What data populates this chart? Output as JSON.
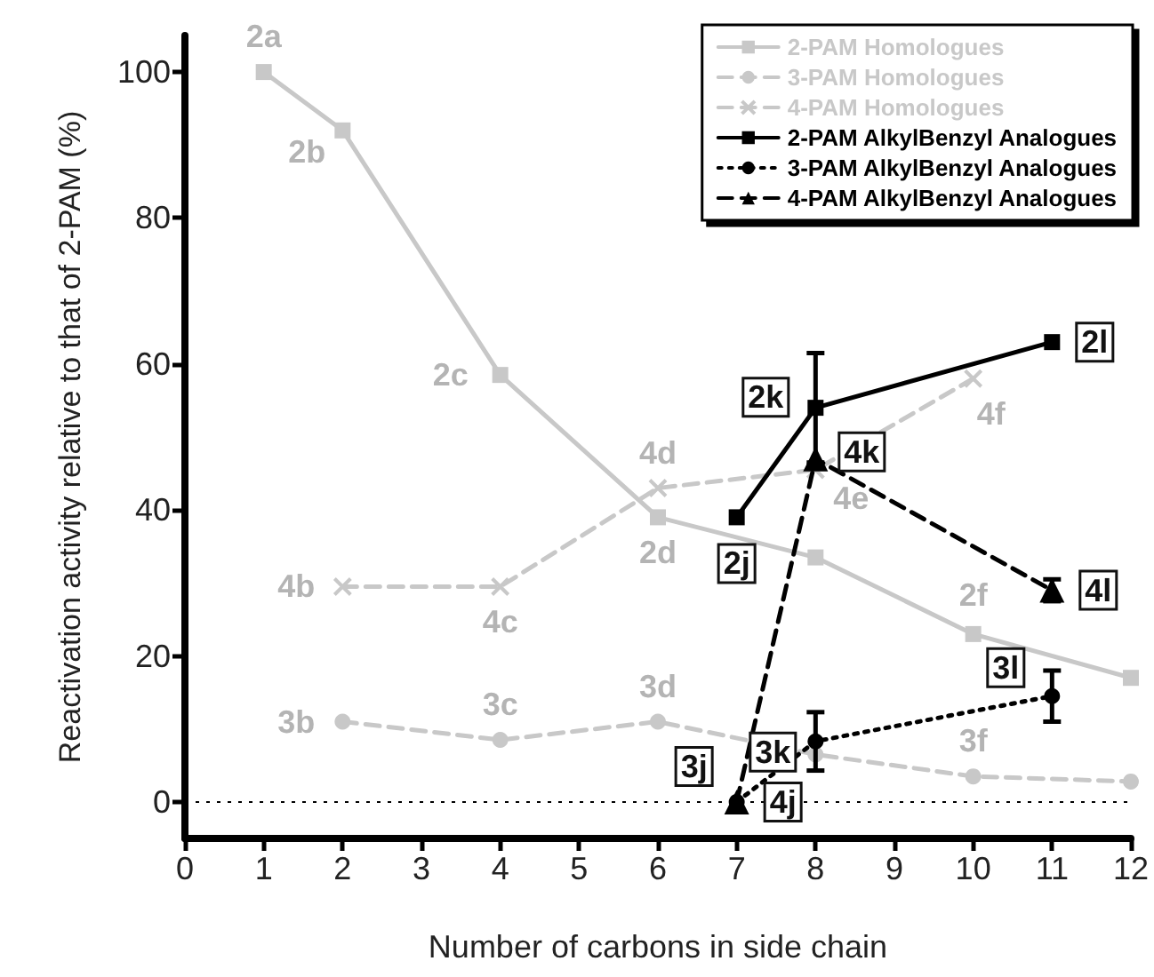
{
  "chart_data": {
    "type": "line",
    "xlabel": "Number of carbons in side chain",
    "ylabel": "Reactivation activity relative to that of 2-PAM (%)",
    "xlim": [
      0,
      12
    ],
    "xticks": [
      0,
      1,
      2,
      3,
      4,
      5,
      6,
      7,
      8,
      9,
      10,
      11,
      12
    ],
    "ylim": [
      -5,
      105
    ],
    "yticks": [
      0,
      20,
      40,
      60,
      80,
      100
    ],
    "grid": false,
    "legend": "top right",
    "ref_lines": [
      {
        "axis": "y",
        "value": 0,
        "line_style": "dotted",
        "color": "#000000"
      }
    ],
    "series": [
      {
        "name": "2-PAM Homologues",
        "color": "#c8c8c8",
        "marker": "square",
        "line_style": "solid",
        "x": [
          1,
          2,
          4,
          6,
          8,
          10,
          12
        ],
        "values": [
          100,
          92,
          58.5,
          39,
          33.5,
          23,
          17
        ]
      },
      {
        "name": "3-PAM Homologues",
        "color": "#c8c8c8",
        "marker": "circle",
        "line_style": "dashed",
        "x": [
          2,
          4,
          6,
          8,
          10,
          12
        ],
        "values": [
          11,
          8.5,
          11,
          6.5,
          3.5,
          2.8
        ]
      },
      {
        "name": "4-PAM Homologues",
        "color": "#c8c8c8",
        "marker": "cross",
        "line_style": "dashed",
        "x": [
          2,
          4,
          6,
          8,
          10
        ],
        "values": [
          29.5,
          29.5,
          43,
          45.5,
          58
        ]
      },
      {
        "name": "2-PAM AlkylBenzyl Analogues",
        "color": "#000000",
        "marker": "square",
        "line_style": "solid",
        "x": [
          7,
          8,
          11
        ],
        "values": [
          39,
          54,
          63
        ],
        "errors": [
          null,
          7.5,
          null
        ]
      },
      {
        "name": "3-PAM AlkylBenzyl Analogues",
        "color": "#000000",
        "marker": "circle",
        "line_style": "dotted",
        "x": [
          7,
          8,
          11
        ],
        "values": [
          0,
          8.3,
          14.5
        ],
        "errors": [
          null,
          4,
          3.5
        ]
      },
      {
        "name": "4-PAM AlkylBenzyl Analogues",
        "color": "#000000",
        "marker": "triangle",
        "line_style": "dashed",
        "x": [
          7,
          8,
          11
        ],
        "values": [
          0,
          47,
          29
        ],
        "errors": [
          null,
          null,
          1.5
        ]
      }
    ],
    "annotations": [
      {
        "text": "2a",
        "x": 1,
        "y": 100
      },
      {
        "text": "2b",
        "x": 2,
        "y": 92
      },
      {
        "text": "2c",
        "x": 4,
        "y": 58.5
      },
      {
        "text": "2d",
        "x": 6,
        "y": 39
      },
      {
        "text": "2f",
        "x": 10,
        "y": 23
      },
      {
        "text": "3b",
        "x": 2,
        "y": 11
      },
      {
        "text": "3c",
        "x": 4,
        "y": 8.5
      },
      {
        "text": "3d",
        "x": 6,
        "y": 11
      },
      {
        "text": "3f",
        "x": 10,
        "y": 3.5
      },
      {
        "text": "4b",
        "x": 2,
        "y": 29.5
      },
      {
        "text": "4c",
        "x": 4,
        "y": 29.5
      },
      {
        "text": "4d",
        "x": 6,
        "y": 43
      },
      {
        "text": "4e",
        "x": 8,
        "y": 45.5
      },
      {
        "text": "4f",
        "x": 10,
        "y": 58
      },
      {
        "text": "2j",
        "x": 7,
        "y": 39
      },
      {
        "text": "2k",
        "x": 8,
        "y": 54
      },
      {
        "text": "2l",
        "x": 11,
        "y": 63
      },
      {
        "text": "3j",
        "x": 7,
        "y": 0
      },
      {
        "text": "3k",
        "x": 8,
        "y": 8.3
      },
      {
        "text": "3l",
        "x": 11,
        "y": 14.5
      },
      {
        "text": "4j",
        "x": 7,
        "y": 0
      },
      {
        "text": "4k",
        "x": 8,
        "y": 47
      },
      {
        "text": "4l",
        "x": 11,
        "y": 29
      }
    ]
  }
}
